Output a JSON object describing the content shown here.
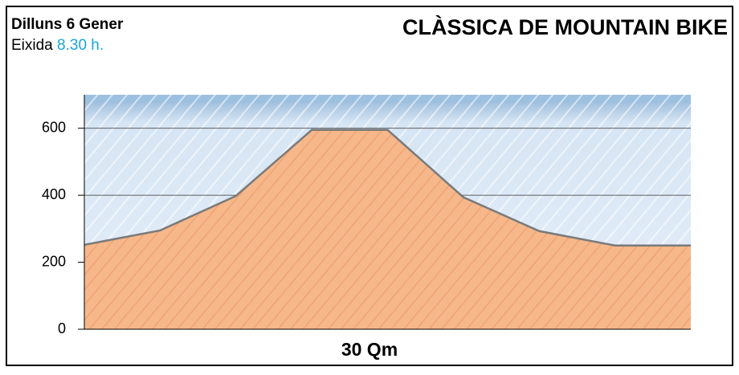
{
  "chart_data": {
    "type": "area",
    "day": "Dilluns 6 Gener",
    "start_label": "Eixida",
    "start_time": "8.30 h.",
    "title": "CLÀSSICA DE MOUNTAIN BIKE",
    "x_label": "30 Qm",
    "categories": [
      null,
      null,
      null,
      null,
      null,
      null,
      null,
      null,
      null
    ],
    "values": [
      252,
      295,
      398,
      595,
      595,
      394,
      293,
      250,
      250
    ],
    "color": "#f6b78a",
    "sky_color": "#9cc0e0",
    "ylim": [
      0,
      700
    ],
    "yticks": [
      0,
      200,
      400,
      600
    ],
    "grid": true
  }
}
